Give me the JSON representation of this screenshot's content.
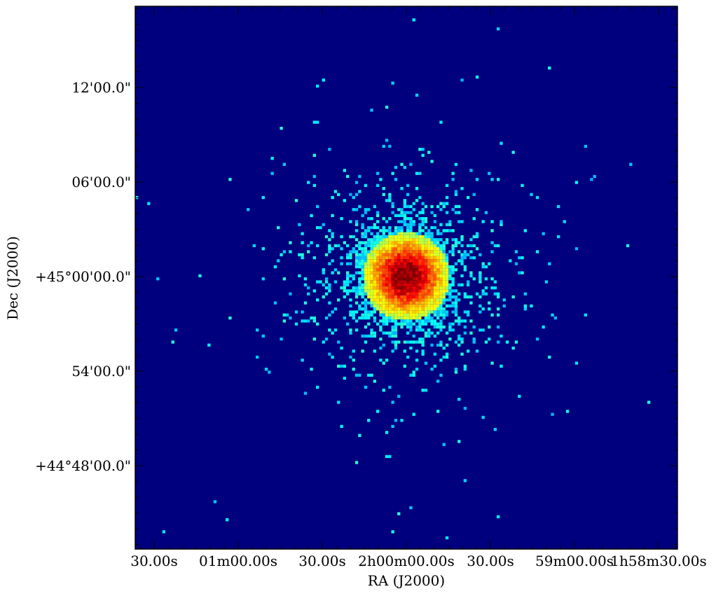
{
  "chart_data": {
    "type": "heatmap",
    "title": "",
    "xlabel": "RA (J2000)",
    "ylabel": "Dec (J2000)",
    "x_ticks": [
      {
        "label": "30.00s",
        "ra_sec": 7230
      },
      {
        "label": "01m00.00s",
        "ra_sec": 7260
      },
      {
        "label": "30.00s",
        "ra_sec": 7290
      },
      {
        "label": "2h00m00.00s",
        "ra_sec": 7200
      },
      {
        "label": "30.00s",
        "ra_sec": 7170
      },
      {
        "label": "59m00.00s",
        "ra_sec": 7140
      },
      {
        "label": "1h58m30.00s",
        "ra_sec": 7110
      }
    ],
    "y_ticks": [
      {
        "label": "12'00.0\"",
        "dec_arcmin": 12
      },
      {
        "label": "06'00.0\"",
        "dec_arcmin": 6
      },
      {
        "label": "+45°00'00.0\"",
        "dec_arcmin": 0
      },
      {
        "label": "54'00.0\"",
        "dec_arcmin": -6
      },
      {
        "label": "+44°48'00.0\"",
        "dec_arcmin": -12
      }
    ],
    "x_tick_order_ra_sec": [
      7290,
      7260,
      7230,
      7200,
      7170,
      7140,
      7110
    ],
    "y_tick_order_dec_arcmin": [
      12,
      6,
      0,
      -6,
      -12
    ],
    "source_center": {
      "ra": "2h00m00.00s",
      "dec": "+45°00'00.0\""
    },
    "colormap": "jet",
    "background_color": "#00007f",
    "colors": [
      "#00007f",
      "#0000ff",
      "#00ffff",
      "#ffff00",
      "#ff0000",
      "#7f0000"
    ]
  }
}
